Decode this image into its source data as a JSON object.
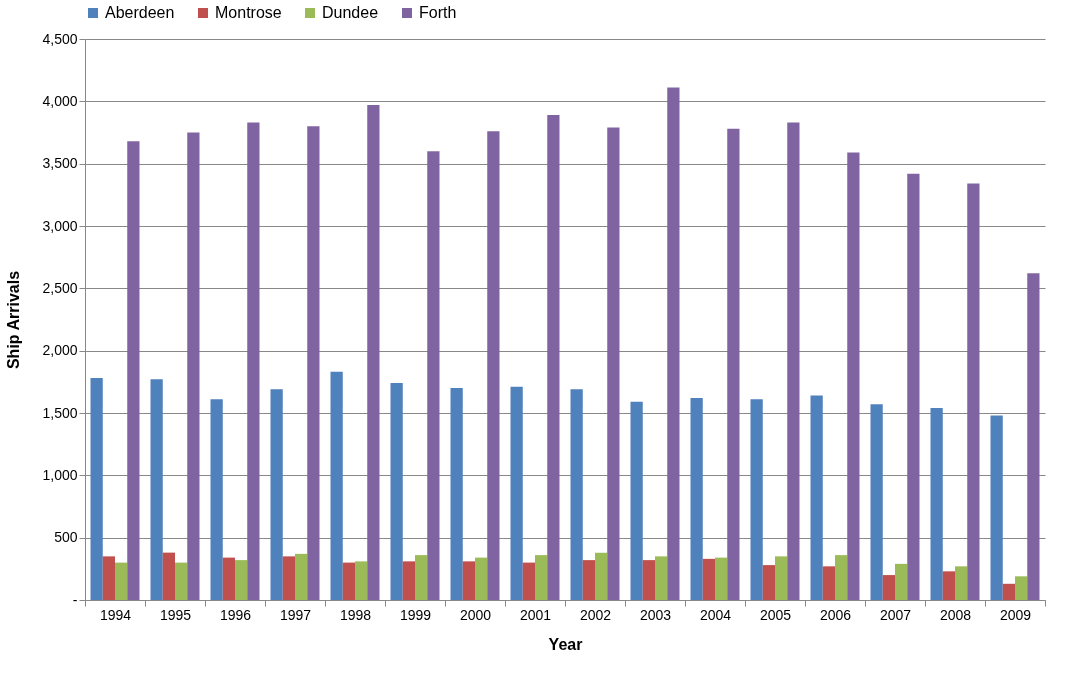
{
  "chart_data": {
    "type": "bar",
    "xlabel": "Year",
    "ylabel": "Ship Arrivals",
    "legend": "top",
    "grid": "y",
    "categories": [
      "1994",
      "1995",
      "1996",
      "1997",
      "1998",
      "1999",
      "2000",
      "2001",
      "2002",
      "2003",
      "2004",
      "2005",
      "2006",
      "2007",
      "2008",
      "2009"
    ],
    "ylim": [
      0,
      4500
    ],
    "yticks": [
      {
        "value": 0,
        "label": "-"
      },
      {
        "value": 500,
        "label": "500"
      },
      {
        "value": 1000,
        "label": "1,000"
      },
      {
        "value": 1500,
        "label": "1,500"
      },
      {
        "value": 2000,
        "label": "2,000"
      },
      {
        "value": 2500,
        "label": "2,500"
      },
      {
        "value": 3000,
        "label": "3,000"
      },
      {
        "value": 3500,
        "label": "3,500"
      },
      {
        "value": 4000,
        "label": "4,000"
      },
      {
        "value": 4500,
        "label": "4,500"
      }
    ],
    "series": [
      {
        "name": "Aberdeen",
        "color": "#4f81bd",
        "values": [
          1780,
          1770,
          1610,
          1690,
          1830,
          1740,
          1700,
          1710,
          1690,
          1590,
          1620,
          1610,
          1640,
          1570,
          1540,
          1480
        ]
      },
      {
        "name": "Montrose",
        "color": "#c0504d",
        "values": [
          350,
          380,
          340,
          350,
          300,
          310,
          310,
          300,
          320,
          320,
          330,
          280,
          270,
          200,
          230,
          130
        ]
      },
      {
        "name": "Dundee",
        "color": "#9bbb59",
        "values": [
          300,
          300,
          320,
          370,
          310,
          360,
          340,
          360,
          380,
          350,
          340,
          350,
          360,
          290,
          270,
          190
        ]
      },
      {
        "name": "Forth",
        "color": "#8064a2",
        "values": [
          3680,
          3750,
          3830,
          3800,
          3970,
          3600,
          3760,
          3890,
          3790,
          4110,
          3780,
          3830,
          3590,
          3420,
          3340,
          2620
        ]
      }
    ]
  }
}
